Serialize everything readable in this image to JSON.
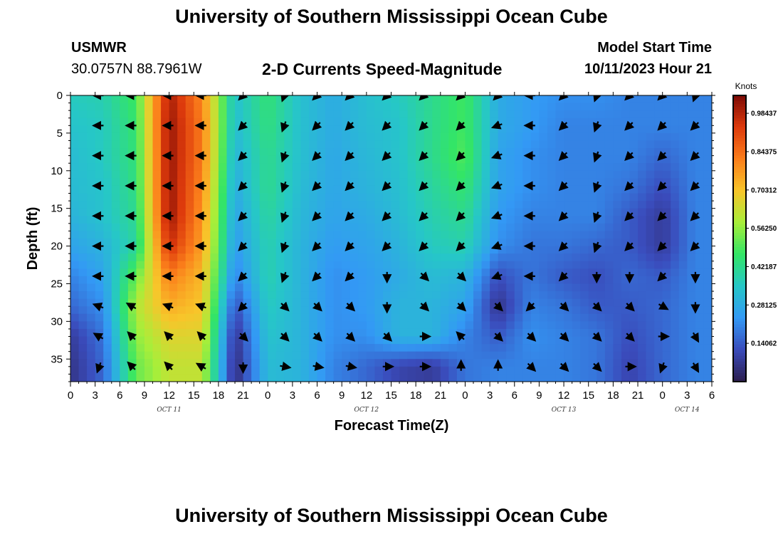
{
  "header": {
    "title": "University of Southern Mississippi Ocean Cube",
    "station": "USMWR",
    "coordinates": "30.0757N  88.7961W",
    "subtitle": "2-D Currents Speed-Magnitude",
    "start_label": "Model Start Time",
    "start_value": "10/11/2023 Hour 21"
  },
  "footer": {
    "title": "University of Southern Mississippi Ocean Cube"
  },
  "colors": {
    "scale": [
      "#2c1e4e",
      "#3a4bbb",
      "#3399f5",
      "#26c7c7",
      "#33e566",
      "#a8ee3a",
      "#f8c52a",
      "#fb7e1b",
      "#dd3a0c",
      "#7c0a06"
    ],
    "arrow": "#000000"
  },
  "chart_data": {
    "type": "heatmap",
    "title": "2-D Currents Speed-Magnitude",
    "xlabel": "Forecast Time(Z)",
    "ylabel": "Depth (ft)",
    "x_tick_labels": [
      "0",
      "3",
      "6",
      "9",
      "12",
      "15",
      "18",
      "21",
      "0",
      "3",
      "6",
      "9",
      "12",
      "15",
      "18",
      "21",
      "0",
      "3",
      "6",
      "9",
      "12",
      "15",
      "18",
      "21",
      "0",
      "3",
      "6"
    ],
    "x_date_labels": [
      {
        "label": "OCT 11",
        "at_hour": 12
      },
      {
        "label": "OCT 12",
        "at_hour": 36
      },
      {
        "label": "OCT 13",
        "at_hour": 60
      },
      {
        "label": "OCT 14",
        "at_hour": 75
      }
    ],
    "xlim_hours": [
      0,
      78
    ],
    "y_ticks": [
      0,
      5,
      10,
      15,
      20,
      25,
      30,
      35
    ],
    "ylim": [
      0,
      38
    ],
    "y_inverted": true,
    "colorbar": {
      "title": "Knots",
      "min": 0,
      "max": 1.05,
      "tick_values": [
        0.14062,
        0.28125,
        0.42187,
        0.5625,
        0.70312,
        0.84375,
        0.98437
      ],
      "tick_labels": [
        "0.14062",
        "0.28125",
        "0.42187",
        "0.56250",
        "0.70312",
        "0.84375",
        "0.98437"
      ]
    },
    "speed_grid": {
      "times_hours": [
        0,
        4,
        8,
        12,
        16,
        20,
        24,
        28,
        32,
        36,
        40,
        44,
        48,
        52,
        56,
        60,
        64,
        68,
        72,
        76
      ],
      "depths_ft": [
        0,
        4,
        8,
        12,
        16,
        20,
        24,
        28,
        32,
        36
      ],
      "values_knots": [
        [
          0.36,
          0.38,
          0.48,
          1.0,
          0.8,
          0.33,
          0.45,
          0.33,
          0.28,
          0.33,
          0.36,
          0.42,
          0.48,
          0.28,
          0.24,
          0.22,
          0.22,
          0.2,
          0.2,
          0.2
        ],
        [
          0.34,
          0.36,
          0.46,
          1.02,
          0.82,
          0.32,
          0.44,
          0.33,
          0.28,
          0.32,
          0.34,
          0.42,
          0.48,
          0.28,
          0.24,
          0.2,
          0.2,
          0.2,
          0.2,
          0.2
        ],
        [
          0.32,
          0.36,
          0.45,
          1.02,
          0.82,
          0.3,
          0.42,
          0.33,
          0.27,
          0.31,
          0.34,
          0.42,
          0.5,
          0.26,
          0.22,
          0.2,
          0.2,
          0.2,
          0.16,
          0.2
        ],
        [
          0.32,
          0.34,
          0.44,
          1.02,
          0.8,
          0.28,
          0.42,
          0.32,
          0.27,
          0.3,
          0.33,
          0.4,
          0.46,
          0.26,
          0.22,
          0.2,
          0.2,
          0.18,
          0.12,
          0.2
        ],
        [
          0.3,
          0.34,
          0.42,
          1.02,
          0.78,
          0.26,
          0.4,
          0.31,
          0.26,
          0.28,
          0.32,
          0.38,
          0.42,
          0.24,
          0.2,
          0.2,
          0.2,
          0.14,
          0.08,
          0.2
        ],
        [
          0.26,
          0.3,
          0.4,
          0.96,
          0.76,
          0.24,
          0.38,
          0.3,
          0.24,
          0.26,
          0.3,
          0.36,
          0.38,
          0.22,
          0.18,
          0.18,
          0.16,
          0.14,
          0.08,
          0.2
        ],
        [
          0.2,
          0.26,
          0.52,
          0.82,
          0.72,
          0.2,
          0.38,
          0.3,
          0.22,
          0.24,
          0.28,
          0.32,
          0.3,
          0.12,
          0.18,
          0.14,
          0.12,
          0.16,
          0.14,
          0.2
        ],
        [
          0.16,
          0.22,
          0.6,
          0.74,
          0.7,
          0.12,
          0.36,
          0.3,
          0.22,
          0.24,
          0.3,
          0.3,
          0.26,
          0.06,
          0.2,
          0.18,
          0.14,
          0.14,
          0.16,
          0.2
        ],
        [
          0.08,
          0.18,
          0.56,
          0.66,
          0.66,
          0.06,
          0.34,
          0.3,
          0.22,
          0.22,
          0.3,
          0.3,
          0.2,
          0.14,
          0.22,
          0.2,
          0.18,
          0.12,
          0.16,
          0.2
        ],
        [
          0.06,
          0.16,
          0.52,
          0.62,
          0.62,
          0.04,
          0.32,
          0.3,
          0.2,
          0.16,
          0.1,
          0.08,
          0.18,
          0.2,
          0.2,
          0.2,
          0.18,
          0.1,
          0.16,
          0.2
        ]
      ]
    },
    "vectors": {
      "times_hours": [
        3.5,
        7.5,
        12,
        16,
        21,
        26,
        30,
        34,
        38.5,
        43,
        47.5,
        52,
        56,
        60,
        64,
        68,
        72,
        76
      ],
      "depths_ft": [
        0,
        4,
        8,
        12,
        16,
        20,
        24,
        28,
        32,
        36
      ],
      "directions_deg": [
        [
          270,
          270,
          270,
          270,
          225,
          200,
          225,
          225,
          225,
          225,
          225,
          225,
          270,
          225,
          200,
          225,
          225,
          200
        ],
        [
          270,
          270,
          270,
          270,
          225,
          200,
          225,
          225,
          225,
          225,
          225,
          250,
          270,
          225,
          200,
          225,
          225,
          225
        ],
        [
          270,
          270,
          270,
          270,
          225,
          200,
          225,
          225,
          225,
          225,
          225,
          250,
          270,
          225,
          200,
          225,
          225,
          225
        ],
        [
          270,
          270,
          270,
          270,
          225,
          200,
          225,
          225,
          225,
          225,
          225,
          250,
          270,
          225,
          200,
          225,
          225,
          225
        ],
        [
          270,
          270,
          270,
          270,
          225,
          200,
          225,
          225,
          225,
          225,
          225,
          250,
          270,
          225,
          200,
          225,
          225,
          225
        ],
        [
          270,
          270,
          270,
          270,
          225,
          200,
          225,
          225,
          225,
          225,
          225,
          250,
          270,
          225,
          200,
          225,
          225,
          225
        ],
        [
          270,
          270,
          270,
          270,
          225,
          200,
          225,
          225,
          180,
          135,
          135,
          250,
          270,
          225,
          180,
          180,
          225,
          180
        ],
        [
          290,
          300,
          290,
          290,
          225,
          135,
          135,
          135,
          180,
          135,
          135,
          135,
          225,
          135,
          135,
          135,
          120,
          180
        ],
        [
          300,
          315,
          315,
          315,
          135,
          135,
          135,
          135,
          135,
          90,
          315,
          135,
          135,
          135,
          135,
          135,
          90,
          150
        ],
        [
          200,
          315,
          315,
          300,
          180,
          100,
          100,
          100,
          90,
          90,
          0,
          0,
          135,
          135,
          135,
          90,
          200,
          150
        ]
      ]
    }
  }
}
